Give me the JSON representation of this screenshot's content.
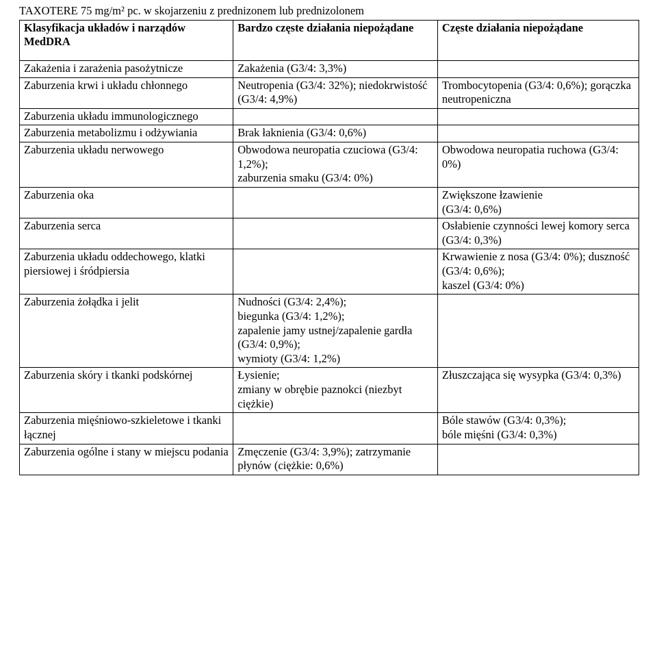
{
  "title_line": "TAXOTERE 75 mg/m² pc. w skojarzeniu z prednizonem lub prednizolonem",
  "header": {
    "col1": "Klasyfikacja układów i narządów MedDRA",
    "col2": "Bardzo częste działania niepożądane",
    "col3": "Częste działania niepożądane"
  },
  "rows": [
    {
      "c1": "Zakażenia i zarażenia pasożytnicze",
      "c2": "Zakażenia (G3/4: 3,3%)",
      "c3": ""
    },
    {
      "c1": "Zaburzenia krwi i układu chłonnego",
      "c2": "Neutropenia (G3/4: 32%); niedokrwistość (G3/4: 4,9%)",
      "c3": "Trombocytopenia (G3/4: 0,6%); gorączka neutropeniczna"
    },
    {
      "c1": "Zaburzenia układu immunologicznego",
      "c2": "",
      "c3": ""
    },
    {
      "c1": "Zaburzenia metabolizmu i odżywiania",
      "c2": "Brak łaknienia (G3/4: 0,6%)",
      "c3": ""
    },
    {
      "c1": "Zaburzenia układu nerwowego",
      "c2": "Obwodowa neuropatia czuciowa (G3/4: 1,2%);\nzaburzenia smaku (G3/4: 0%)",
      "c3": "Obwodowa neuropatia ruchowa (G3/4: 0%)"
    },
    {
      "c1": "Zaburzenia oka",
      "c2": "",
      "c3": "Zwiększone łzawienie\n(G3/4: 0,6%)"
    },
    {
      "c1": "Zaburzenia serca",
      "c2": "",
      "c3": "Osłabienie czynności lewej komory serca (G3/4: 0,3%)"
    },
    {
      "c1": "Zaburzenia układu oddechowego, klatki piersiowej i śródpiersia",
      "c2": "",
      "c3": "Krwawienie z nosa (G3/4: 0%); duszność (G3/4: 0,6%);\nkaszel (G3/4: 0%)"
    },
    {
      "c1": "Zaburzenia żołądka i jelit",
      "c2": "Nudności (G3/4: 2,4%);\nbiegunka (G3/4: 1,2%);\nzapalenie jamy ustnej/zapalenie gardła (G3/4: 0,9%);\nwymioty (G3/4: 1,2%)",
      "c3": ""
    },
    {
      "c1": "Zaburzenia skóry i tkanki podskórnej",
      "c2": "Łysienie;\nzmiany w obrębie paznokci (niezbyt ciężkie)",
      "c3": "Złuszczająca się wysypka (G3/4: 0,3%)"
    },
    {
      "c1": "Zaburzenia mięśniowo-szkieletowe i tkanki łącznej",
      "c2": "",
      "c3": "Bóle stawów (G3/4: 0,3%);\nbóle mięśni (G3/4: 0,3%)"
    },
    {
      "c1": "Zaburzenia ogólne i stany w miejscu podania",
      "c2": "Zmęczenie (G3/4: 3,9%); zatrzymanie płynów (ciężkie: 0,6%)",
      "c3": ""
    }
  ]
}
